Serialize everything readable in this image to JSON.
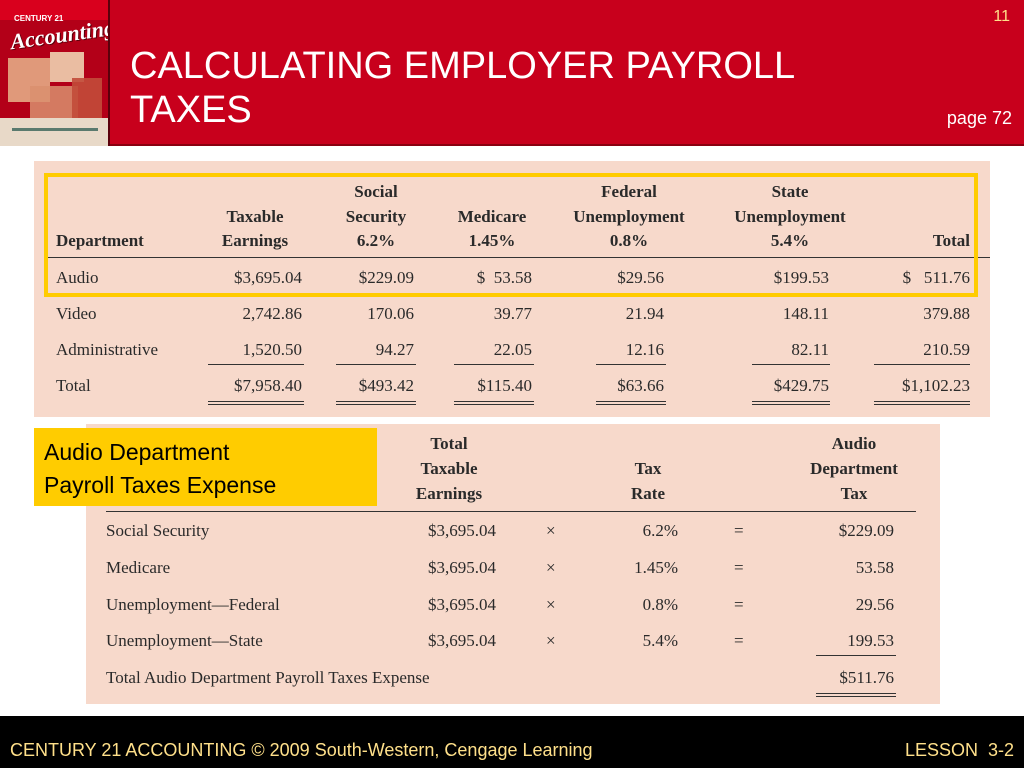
{
  "header": {
    "title": "CALCULATING EMPLOYER PAYROLL TAXES",
    "slide_number": "11",
    "page_ref": "page 72",
    "book_cover": {
      "series": "CENTURY 21",
      "logo": "Accounting"
    }
  },
  "department_table": {
    "headers": {
      "department": "Department",
      "taxable_earnings": [
        "Taxable",
        "Earnings"
      ],
      "social_security": [
        "Social",
        "Security",
        "6.2%"
      ],
      "medicare": [
        "Medicare",
        "1.45%"
      ],
      "federal_unemployment": [
        "Federal",
        "Unemployment",
        "0.8%"
      ],
      "state_unemployment": [
        "State",
        "Unemployment",
        "5.4%"
      ],
      "total": "Total"
    },
    "rows": [
      {
        "department": "Audio",
        "taxable": "$3,695.04",
        "ss": "$229.09",
        "medicare": "$  53.58",
        "federal": "$29.56",
        "state": "$199.53",
        "total": "$   511.76"
      },
      {
        "department": "Video",
        "taxable": "2,742.86",
        "ss": "170.06",
        "medicare": "39.77",
        "federal": "21.94",
        "state": "148.11",
        "total": "379.88"
      },
      {
        "department": "Administrative",
        "taxable": "1,520.50",
        "ss": "94.27",
        "medicare": "22.05",
        "federal": "12.16",
        "state": "82.11",
        "total": "210.59"
      },
      {
        "department": "Total",
        "taxable": "$7,958.40",
        "ss": "$493.42",
        "medicare": "$115.40",
        "federal": "$63.66",
        "state": "$429.75",
        "total": "$1,102.23"
      }
    ]
  },
  "audio_table": {
    "callout": [
      "Audio Department",
      "Payroll Taxes Expense"
    ],
    "headers": {
      "earnings": [
        "Total",
        "Taxable",
        "Earnings"
      ],
      "rate": [
        "Tax",
        "Rate"
      ],
      "tax": [
        "Audio",
        "Department",
        "Tax"
      ]
    },
    "rows": [
      {
        "label": "Social Security",
        "earnings": "$3,695.04",
        "times": "×",
        "rate": "6.2%",
        "equals": "=",
        "tax": "$229.09"
      },
      {
        "label": "Medicare",
        "earnings": "$3,695.04",
        "times": "×",
        "rate": "1.45%",
        "equals": "=",
        "tax": "53.58"
      },
      {
        "label": "Unemployment—Federal",
        "earnings": "$3,695.04",
        "times": "×",
        "rate": "0.8%",
        "equals": "=",
        "tax": "29.56"
      },
      {
        "label": "Unemployment—State",
        "earnings": "$3,695.04",
        "times": "×",
        "rate": "5.4%",
        "equals": "=",
        "tax": "199.53"
      }
    ],
    "total_label": "Total Audio Department Payroll Taxes Expense",
    "total_value": "$511.76"
  },
  "footer": {
    "left": "CENTURY 21 ACCOUNTING © 2009 South-Western, Cengage Learning",
    "right": "LESSON  3-2"
  },
  "colors": {
    "header_red": "#c8001c",
    "panel_peach": "#f7d9cb",
    "highlight_yellow": "#ffcc00",
    "footer_text": "#ffe08a"
  }
}
